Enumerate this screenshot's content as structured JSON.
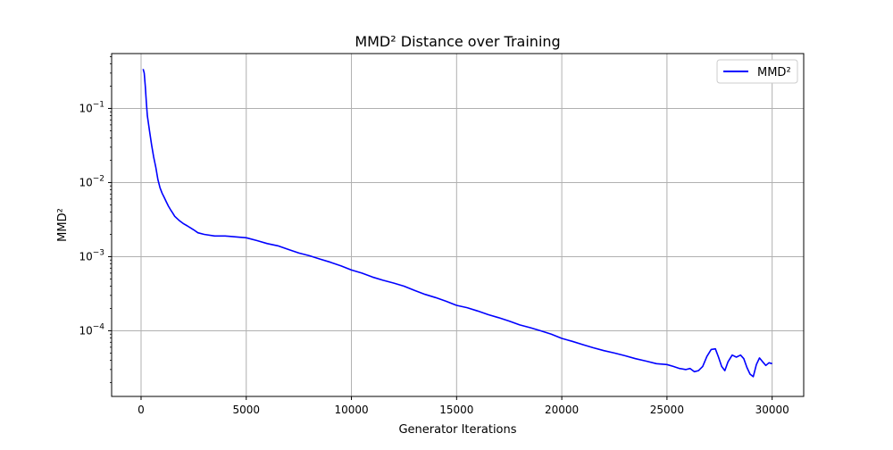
{
  "chart_data": {
    "type": "line",
    "title": "MMD² Distance over Training",
    "xlabel": "Generator Iterations",
    "ylabel": "MMD²",
    "xlim": [
      -1400,
      31500
    ],
    "ylim": [
      1.3e-05,
      0.55
    ],
    "yscale": "log",
    "grid": true,
    "legend_position": "top-right",
    "x_ticks": [
      {
        "value": 0,
        "label": "0"
      },
      {
        "value": 5000,
        "label": "5000"
      },
      {
        "value": 10000,
        "label": "10000"
      },
      {
        "value": 15000,
        "label": "15000"
      },
      {
        "value": 20000,
        "label": "20000"
      },
      {
        "value": 25000,
        "label": "25000"
      },
      {
        "value": 30000,
        "label": "30000"
      }
    ],
    "y_ticks": [
      {
        "value": 0.1,
        "label_base": "10",
        "label_exp": "−1"
      },
      {
        "value": 0.01,
        "label_base": "10",
        "label_exp": "−2"
      },
      {
        "value": 0.001,
        "label_base": "10",
        "label_exp": "−3"
      },
      {
        "value": 0.0001,
        "label_base": "10",
        "label_exp": "−4"
      }
    ],
    "series": [
      {
        "name": "MMD²",
        "color": "#0000ff",
        "x": [
          100,
          150,
          200,
          250,
          300,
          400,
          500,
          600,
          700,
          800,
          900,
          1000,
          1100,
          1200,
          1300,
          1400,
          1500,
          1600,
          1800,
          2000,
          2200,
          2500,
          2700,
          3000,
          3500,
          4000,
          4500,
          5000,
          5500,
          6000,
          6500,
          7000,
          7500,
          8000,
          8500,
          9000,
          9500,
          10000,
          10500,
          11000,
          11500,
          12000,
          12500,
          13000,
          13500,
          14000,
          14500,
          15000,
          15500,
          16000,
          16500,
          17000,
          17500,
          18000,
          18500,
          19000,
          19500,
          20000,
          20500,
          21000,
          21500,
          22000,
          22500,
          23000,
          23500,
          24000,
          24500,
          25000,
          25300,
          25600,
          25900,
          26100,
          26300,
          26500,
          26700,
          26900,
          27100,
          27300,
          27450,
          27600,
          27750,
          27900,
          28100,
          28300,
          28500,
          28650,
          28800,
          28950,
          29100,
          29250,
          29400,
          29550,
          29700,
          29850,
          30000
        ],
        "y": [
          0.34,
          0.3,
          0.2,
          0.12,
          0.08,
          0.05,
          0.032,
          0.022,
          0.016,
          0.011,
          0.0085,
          0.0072,
          0.0063,
          0.0055,
          0.0048,
          0.0043,
          0.0039,
          0.0035,
          0.0031,
          0.0028,
          0.0026,
          0.0023,
          0.0021,
          0.002,
          0.0019,
          0.0019,
          0.00185,
          0.0018,
          0.00165,
          0.0015,
          0.0014,
          0.00125,
          0.00112,
          0.00103,
          0.00093,
          0.00084,
          0.00075,
          0.00066,
          0.0006,
          0.00053,
          0.00048,
          0.00044,
          0.0004,
          0.00035,
          0.00031,
          0.00028,
          0.00025,
          0.00022,
          0.000205,
          0.000185,
          0.000165,
          0.00015,
          0.000135,
          0.00012,
          0.00011,
          0.0001,
          9e-05,
          7.9e-05,
          7.2e-05,
          6.5e-05,
          5.9e-05,
          5.4e-05,
          5e-05,
          4.6e-05,
          4.2e-05,
          3.9e-05,
          3.6e-05,
          3.5e-05,
          3.3e-05,
          3.1e-05,
          3e-05,
          3.1e-05,
          2.8e-05,
          2.9e-05,
          3.3e-05,
          4.5e-05,
          5.6e-05,
          5.7e-05,
          4.4e-05,
          3.3e-05,
          2.9e-05,
          3.8e-05,
          4.7e-05,
          4.4e-05,
          4.7e-05,
          4.2e-05,
          3.2e-05,
          2.6e-05,
          2.4e-05,
          3.5e-05,
          4.3e-05,
          3.8e-05,
          3.4e-05,
          3.7e-05,
          3.6e-05
        ]
      }
    ]
  }
}
